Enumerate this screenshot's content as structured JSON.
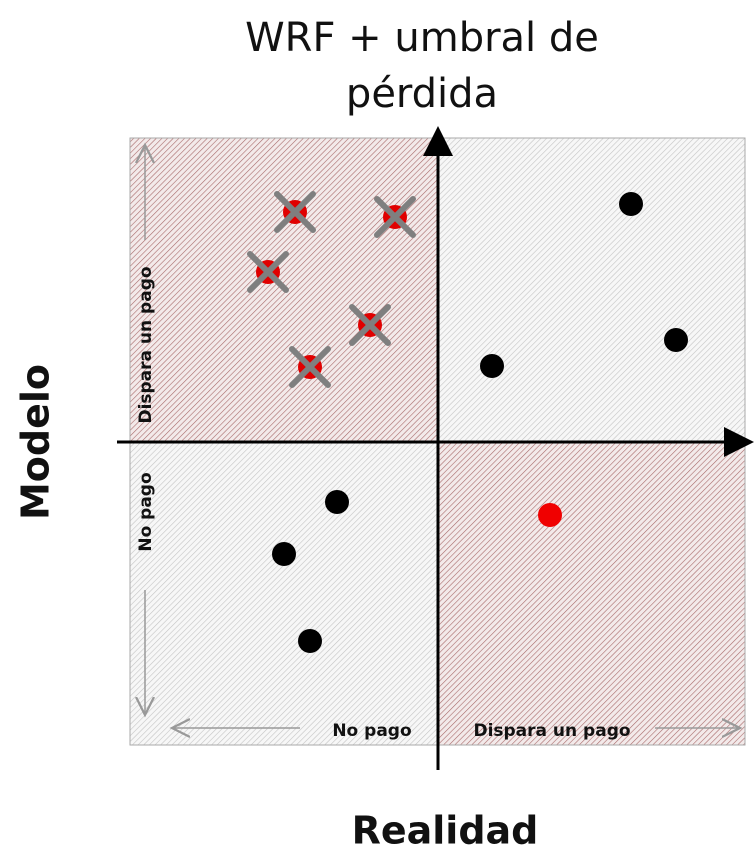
{
  "title": {
    "lines": [
      "WRF + umbral de",
      "pérdida"
    ]
  },
  "y_axis": {
    "label": "Modelo",
    "top_label": "Dispara un pago",
    "bottom_label": "No pago"
  },
  "x_axis": {
    "label": "Realidad",
    "left_label": "No pago",
    "right_label": "Dispara un pago"
  }
}
